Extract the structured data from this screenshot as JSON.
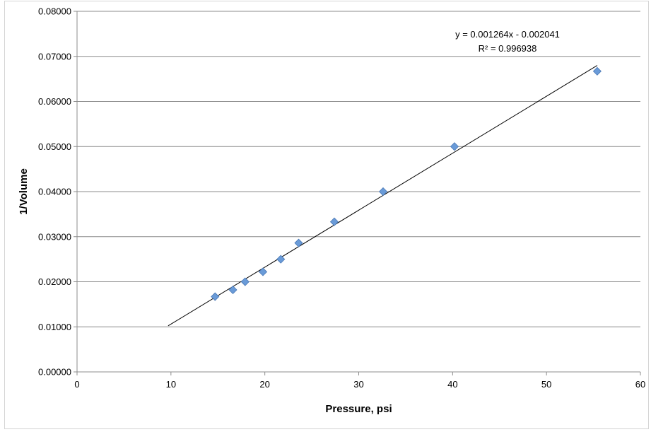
{
  "chart_data": {
    "type": "scatter",
    "title": "",
    "xlabel": "Pressure, psi",
    "ylabel": "1/Volume",
    "xlim": [
      0,
      60
    ],
    "ylim": [
      0,
      0.08
    ],
    "x_ticks": [
      "0",
      "10",
      "20",
      "30",
      "40",
      "50",
      "60"
    ],
    "y_ticks": [
      "0.00000",
      "0.01000",
      "0.02000",
      "0.03000",
      "0.04000",
      "0.05000",
      "0.06000",
      "0.07000",
      "0.08000"
    ],
    "grid": "horizontal major gridlines",
    "legend": "none",
    "series": [
      {
        "marker": "diamond",
        "color": "#6a9bd8",
        "points": [
          {
            "x": 14.7,
            "y": 0.0167
          },
          {
            "x": 16.6,
            "y": 0.0182
          },
          {
            "x": 17.9,
            "y": 0.02
          },
          {
            "x": 19.8,
            "y": 0.0222
          },
          {
            "x": 21.7,
            "y": 0.025
          },
          {
            "x": 23.6,
            "y": 0.0286
          },
          {
            "x": 27.4,
            "y": 0.0333
          },
          {
            "x": 32.6,
            "y": 0.04
          },
          {
            "x": 40.2,
            "y": 0.05
          },
          {
            "x": 55.4,
            "y": 0.0667
          }
        ]
      }
    ],
    "trendline": {
      "type": "linear",
      "slope": 0.001264,
      "intercept": -0.002041,
      "x_range": [
        9.7,
        55.4
      ],
      "equation_text": "y = 0.001264x - 0.002041",
      "r2_text": "R² = 0.996938"
    }
  }
}
